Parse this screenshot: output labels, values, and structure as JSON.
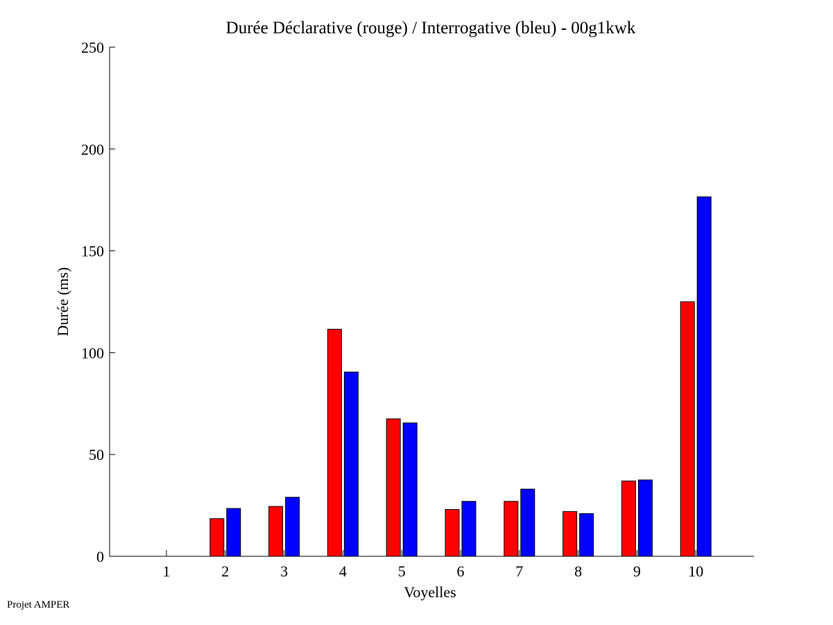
{
  "chart_data": {
    "type": "bar",
    "title": "Durée Déclarative (rouge) / Interrogative (bleu) - 00g1kwk",
    "xlabel": "Voyelles",
    "ylabel": "Durée (ms)",
    "ylim": [
      0,
      250
    ],
    "yticks": [
      "0",
      "50",
      "100",
      "150",
      "200",
      "250"
    ],
    "categories": [
      "1",
      "2",
      "3",
      "4",
      "5",
      "6",
      "7",
      "8",
      "9",
      "10"
    ],
    "grid": false,
    "series": [
      {
        "color": "#ff0000",
        "values": [
          0,
          18.5,
          24.5,
          111.5,
          67.5,
          23,
          27,
          22,
          37,
          125
        ]
      },
      {
        "color": "#0000ff",
        "values": [
          0,
          23.5,
          29,
          90.5,
          65.5,
          27,
          33,
          21,
          37.5,
          176.5
        ]
      }
    ]
  },
  "footer": {
    "note": "Projet AMPER"
  }
}
